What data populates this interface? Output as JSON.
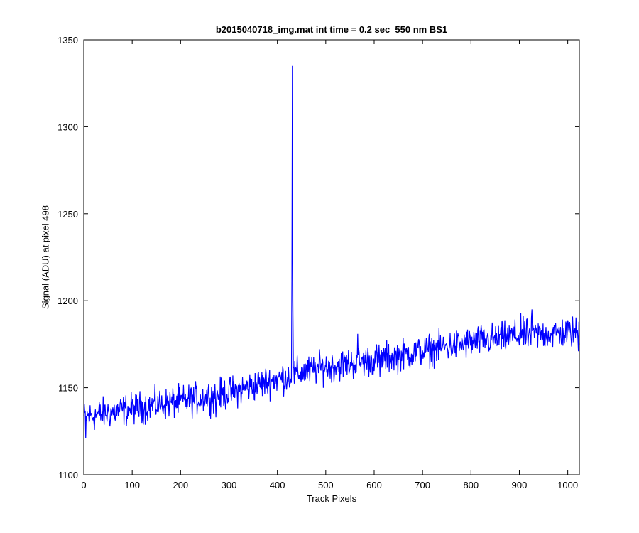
{
  "chart_data": {
    "type": "line",
    "title": "b2015040718_img.mat int time = 0.2 sec  550 nm BS1",
    "xlabel": "Track Pixels",
    "ylabel": "Signal (ADU) at pixel 498",
    "xlim": [
      0,
      1024
    ],
    "ylim": [
      1100,
      1350
    ],
    "xticks": [
      0,
      100,
      200,
      300,
      400,
      500,
      600,
      700,
      800,
      900,
      1000
    ],
    "yticks": [
      1100,
      1150,
      1200,
      1250,
      1300,
      1350
    ],
    "grid": false,
    "legend": "none",
    "series": [
      {
        "color": "#0000ff",
        "baseline": {
          "x": [
            0,
            100,
            200,
            300,
            400,
            500,
            600,
            700,
            800,
            900,
            1024
          ],
          "y": [
            1133,
            1138,
            1142,
            1147,
            1155,
            1162,
            1166,
            1171,
            1176,
            1180,
            1182
          ]
        },
        "noise_amplitude": 4.5,
        "spikes": [
          {
            "x": 430,
            "y": 1213
          },
          {
            "x": 431,
            "y": 1335
          },
          {
            "x": 432,
            "y": 1200
          },
          {
            "x": 4,
            "y": 1121
          },
          {
            "x": 273,
            "y": 1133
          },
          {
            "x": 566,
            "y": 1181
          },
          {
            "x": 612,
            "y": 1156
          },
          {
            "x": 903,
            "y": 1193
          },
          {
            "x": 926,
            "y": 1195
          },
          {
            "x": 1022,
            "y": 1171
          }
        ]
      }
    ]
  },
  "colors": {
    "line": "#0000ff",
    "axes": "#000000",
    "background": "#ffffff"
  }
}
